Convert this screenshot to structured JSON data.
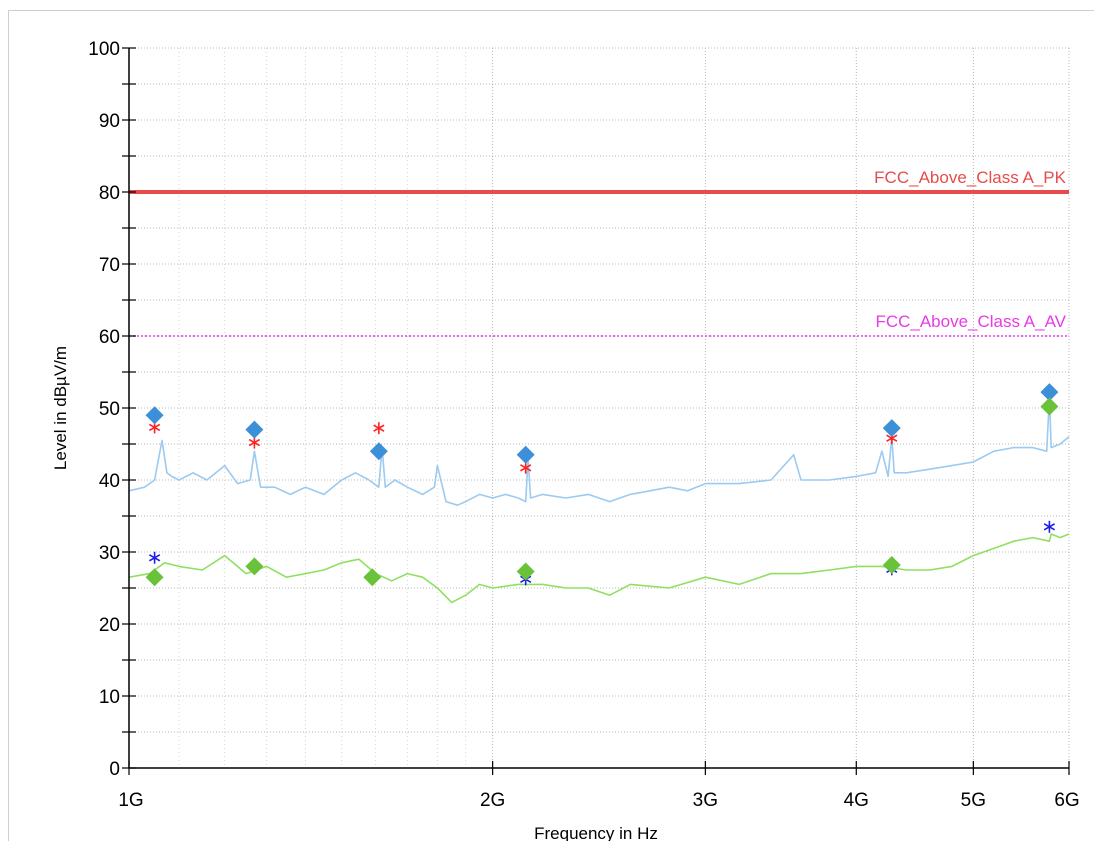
{
  "chart_data": {
    "type": "line",
    "xlabel": "Frequency in Hz",
    "ylabel": "Level in dBµV/m",
    "xscale": "log",
    "xlim": [
      1000000000,
      6000000000
    ],
    "ylim": [
      0,
      100
    ],
    "grid": true,
    "y_ticks": [
      {
        "value": 0,
        "label": "0"
      },
      {
        "value": 10,
        "label": "10"
      },
      {
        "value": 20,
        "label": "20"
      },
      {
        "value": 30,
        "label": "30"
      },
      {
        "value": 40,
        "label": "40"
      },
      {
        "value": 50,
        "label": "50"
      },
      {
        "value": 60,
        "label": "60"
      },
      {
        "value": 70,
        "label": "70"
      },
      {
        "value": 80,
        "label": "80"
      },
      {
        "value": 90,
        "label": "90"
      },
      {
        "value": 100,
        "label": "100"
      }
    ],
    "x_ticks": [
      {
        "value": 1000000000,
        "label": "1G"
      },
      {
        "value": 2000000000,
        "label": "2G"
      },
      {
        "value": 3000000000,
        "label": "3G"
      },
      {
        "value": 4000000000,
        "label": "4G"
      },
      {
        "value": 5000000000,
        "label": "5G"
      },
      {
        "value": 6000000000,
        "label": "6G"
      }
    ],
    "limit_lines": [
      {
        "name": "FCC_Above_Class A_PK",
        "value": 80,
        "color": "#e84b4b",
        "style": "solid"
      },
      {
        "name": "FCC_Above_Class A_AV",
        "value": 60,
        "color": "#e83be8",
        "style": "dotted"
      }
    ],
    "series": [
      {
        "color": "#9ccaf0",
        "x": [
          1000000000,
          1030000000,
          1050000000,
          1065000000,
          1075000000,
          1085000000,
          1100000000,
          1130000000,
          1160000000,
          1200000000,
          1230000000,
          1260000000,
          1270000000,
          1285000000,
          1320000000,
          1360000000,
          1400000000,
          1450000000,
          1500000000,
          1540000000,
          1580000000,
          1610000000,
          1620000000,
          1630000000,
          1660000000,
          1700000000,
          1750000000,
          1790000000,
          1800000000,
          1830000000,
          1870000000,
          1900000000,
          1950000000,
          2000000000,
          2050000000,
          2100000000,
          2130000000,
          2140000000,
          2150000000,
          2200000000,
          2300000000,
          2400000000,
          2500000000,
          2600000000,
          2700000000,
          2800000000,
          2900000000,
          3000000000,
          3200000000,
          3400000000,
          3550000000,
          3600000000,
          3800000000,
          4000000000,
          4150000000,
          4200000000,
          4250000000,
          4280000000,
          4300000000,
          4400000000,
          4600000000,
          4800000000,
          5000000000,
          5200000000,
          5400000000,
          5600000000,
          5750000000,
          5780000000,
          5800000000,
          5900000000,
          6000000000
        ],
        "y": [
          38.5,
          39,
          40,
          45.5,
          41,
          40.5,
          40,
          41,
          40,
          42,
          39.5,
          40,
          44,
          39,
          39,
          38,
          39,
          38,
          40,
          41,
          40,
          39,
          44.5,
          39,
          40,
          39,
          38,
          39,
          42,
          37,
          36.5,
          37,
          38,
          37.5,
          38,
          37.5,
          37,
          43,
          37.5,
          38,
          37.5,
          38,
          37,
          38,
          38.5,
          39,
          38.5,
          39.5,
          39.5,
          40,
          43.5,
          40,
          40,
          40.5,
          41,
          44,
          40.5,
          46,
          41,
          41,
          41.5,
          42,
          42.5,
          44,
          44.5,
          44.5,
          44,
          51.5,
          44.5,
          45,
          46
        ]
      },
      {
        "color": "#8fe060",
        "x": [
          1000000000,
          1040000000,
          1070000000,
          1100000000,
          1150000000,
          1200000000,
          1250000000,
          1300000000,
          1350000000,
          1400000000,
          1450000000,
          1500000000,
          1550000000,
          1600000000,
          1650000000,
          1700000000,
          1750000000,
          1800000000,
          1850000000,
          1900000000,
          1950000000,
          2000000000,
          2100000000,
          2200000000,
          2300000000,
          2400000000,
          2500000000,
          2600000000,
          2800000000,
          3000000000,
          3200000000,
          3400000000,
          3600000000,
          3800000000,
          4000000000,
          4200000000,
          4400000000,
          4600000000,
          4800000000,
          5000000000,
          5200000000,
          5400000000,
          5600000000,
          5780000000,
          5800000000,
          5900000000,
          6000000000
        ],
        "y": [
          26.5,
          27,
          28.5,
          28,
          27.5,
          29.5,
          27,
          28,
          26.5,
          27,
          27.5,
          28.5,
          29,
          27,
          26,
          27,
          26.5,
          25,
          23,
          24,
          25.5,
          25,
          25.5,
          25.5,
          25,
          25,
          24,
          25.5,
          25,
          26.5,
          25.5,
          27,
          27,
          27.5,
          28,
          28,
          27.5,
          27.5,
          28,
          29.5,
          30.5,
          31.5,
          32,
          31.5,
          32.5,
          32,
          32.5
        ]
      }
    ],
    "peak_markers_blue": {
      "color": "#3d8fd8",
      "shape": "diamond",
      "x": [
        1050000000,
        1270000000,
        1610000000,
        2130000000,
        4280000000,
        5780000000
      ],
      "y": [
        49,
        47,
        44,
        43.5,
        47.2,
        52.2
      ]
    },
    "peak_markers_green": {
      "color": "#6ac23a",
      "shape": "diamond",
      "x": [
        1050000000,
        1270000000,
        1590000000,
        2130000000,
        4280000000,
        5780000000
      ],
      "y": [
        26.5,
        28,
        26.5,
        27.3,
        28.2,
        50.2
      ]
    },
    "asterisk_markers_red": {
      "color": "#ff2020",
      "shape": "asterisk",
      "x": [
        1050000000,
        1270000000,
        1610000000,
        2130000000,
        4280000000
      ],
      "y": [
        47.3,
        45.2,
        47.2,
        41.7,
        45.8
      ]
    },
    "asterisk_markers_blue": {
      "color": "#1c1cf0",
      "shape": "asterisk",
      "x": [
        1050000000,
        2130000000,
        4280000000,
        5780000000
      ],
      "y": [
        29.2,
        26.2,
        27.6,
        33.5
      ]
    }
  }
}
